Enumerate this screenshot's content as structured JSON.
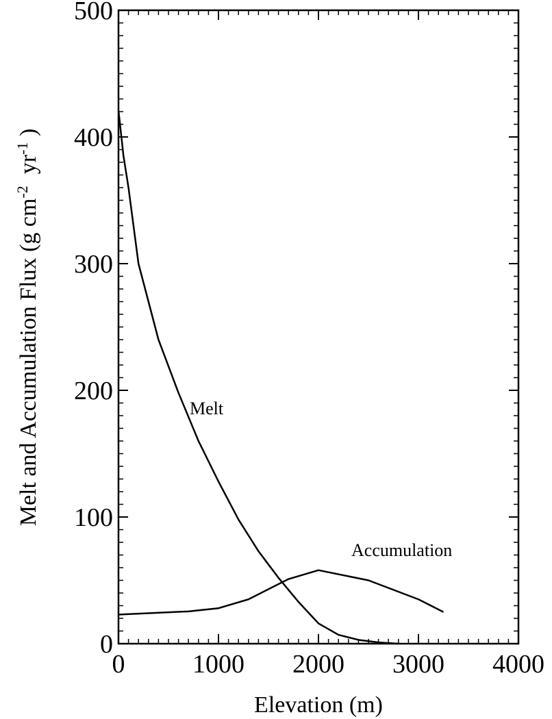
{
  "chart_data": {
    "type": "line",
    "xlabel": "Elevation (m)",
    "ylabel": [
      {
        "text": "Melt and Accumulation Flux (g cm"
      },
      {
        "text": "-2",
        "sup": true
      },
      {
        "text": "  yr"
      },
      {
        "text": "-1",
        "sup": true
      },
      {
        "text": " )"
      }
    ],
    "xlim": [
      0,
      4000
    ],
    "ylim": [
      0,
      500
    ],
    "xticks": [
      0,
      1000,
      2000,
      3000,
      4000
    ],
    "yticks": [
      0,
      100,
      200,
      300,
      400,
      500
    ],
    "xminorticks": [
      100,
      200,
      300,
      400,
      500,
      600,
      700,
      800,
      900,
      1100,
      1200,
      1300,
      1400,
      1500,
      1600,
      1700,
      1800,
      1900,
      2100,
      2200,
      2300,
      2400,
      2500,
      2600,
      2700,
      2800,
      2900,
      3100,
      3200,
      3300,
      3400,
      3500,
      3600,
      3700,
      3800,
      3900
    ],
    "yminorticks": [
      10,
      20,
      30,
      40,
      50,
      60,
      70,
      80,
      90,
      110,
      120,
      130,
      140,
      150,
      160,
      170,
      180,
      190,
      210,
      220,
      230,
      240,
      250,
      260,
      270,
      280,
      290,
      310,
      320,
      330,
      340,
      350,
      360,
      370,
      380,
      390,
      410,
      420,
      430,
      440,
      450,
      460,
      470,
      480,
      490
    ],
    "series": [
      {
        "name": "Melt",
        "color": "#000000",
        "x": [
          0,
          50,
          100,
          200,
          400,
          600,
          800,
          1000,
          1200,
          1400,
          1600,
          1800,
          2000,
          2200,
          2400,
          2600,
          2800
        ],
        "values": [
          421,
          385,
          360,
          300,
          240,
          198,
          160,
          128,
          98,
          73,
          52,
          33,
          16,
          7,
          3,
          1,
          0
        ]
      },
      {
        "name": "Accumulation",
        "color": "#000000",
        "x": [
          0,
          700,
          1000,
          1300,
          1700,
          2000,
          2500,
          3000,
          3250
        ],
        "values": [
          23,
          25.5,
          28,
          35,
          51,
          58,
          50,
          35,
          25
        ]
      }
    ]
  }
}
